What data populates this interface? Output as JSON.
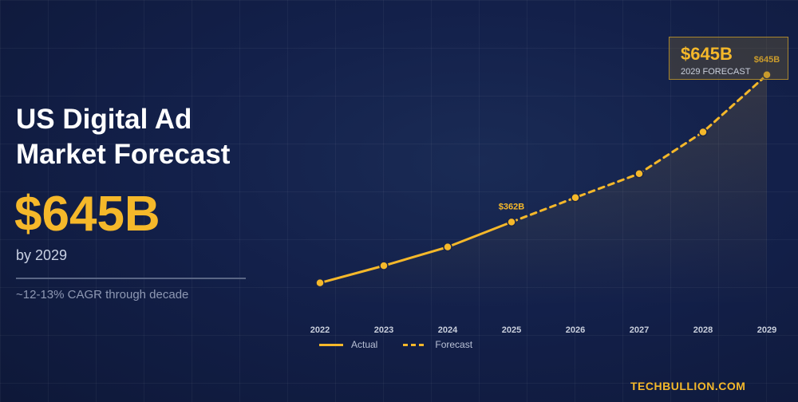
{
  "title": "US Digital Ad Market Forecast",
  "headline_value": "$645B",
  "headline_sub": "by 2029",
  "note": "~12-13% CAGR through decade",
  "callout": {
    "value": "$645B",
    "label": "2029 FORECAST"
  },
  "brand": "TECHBULLION.COM",
  "colors": {
    "accent": "#f5b82a",
    "background": "#13204a"
  },
  "chart_data": {
    "type": "line",
    "x": [
      "2022",
      "2023",
      "2024",
      "2025",
      "2026",
      "2027",
      "2028",
      "2029"
    ],
    "series": [
      {
        "name": "Actual",
        "style": "solid",
        "x": [
          "2022",
          "2023",
          "2024",
          "2025"
        ],
        "values": [
          245,
          278,
          314,
          362
        ]
      },
      {
        "name": "Forecast",
        "style": "dashed",
        "x": [
          "2025",
          "2026",
          "2027",
          "2028",
          "2029"
        ],
        "values": [
          362,
          409,
          455,
          535,
          645
        ]
      }
    ],
    "annotations": [
      {
        "x": "2025",
        "label": "$362B"
      },
      {
        "x": "2029",
        "label": "$645B"
      }
    ],
    "ylim": [
      200,
      660
    ],
    "grid": true,
    "area_fill": true,
    "legend_position": "bottom-left"
  }
}
